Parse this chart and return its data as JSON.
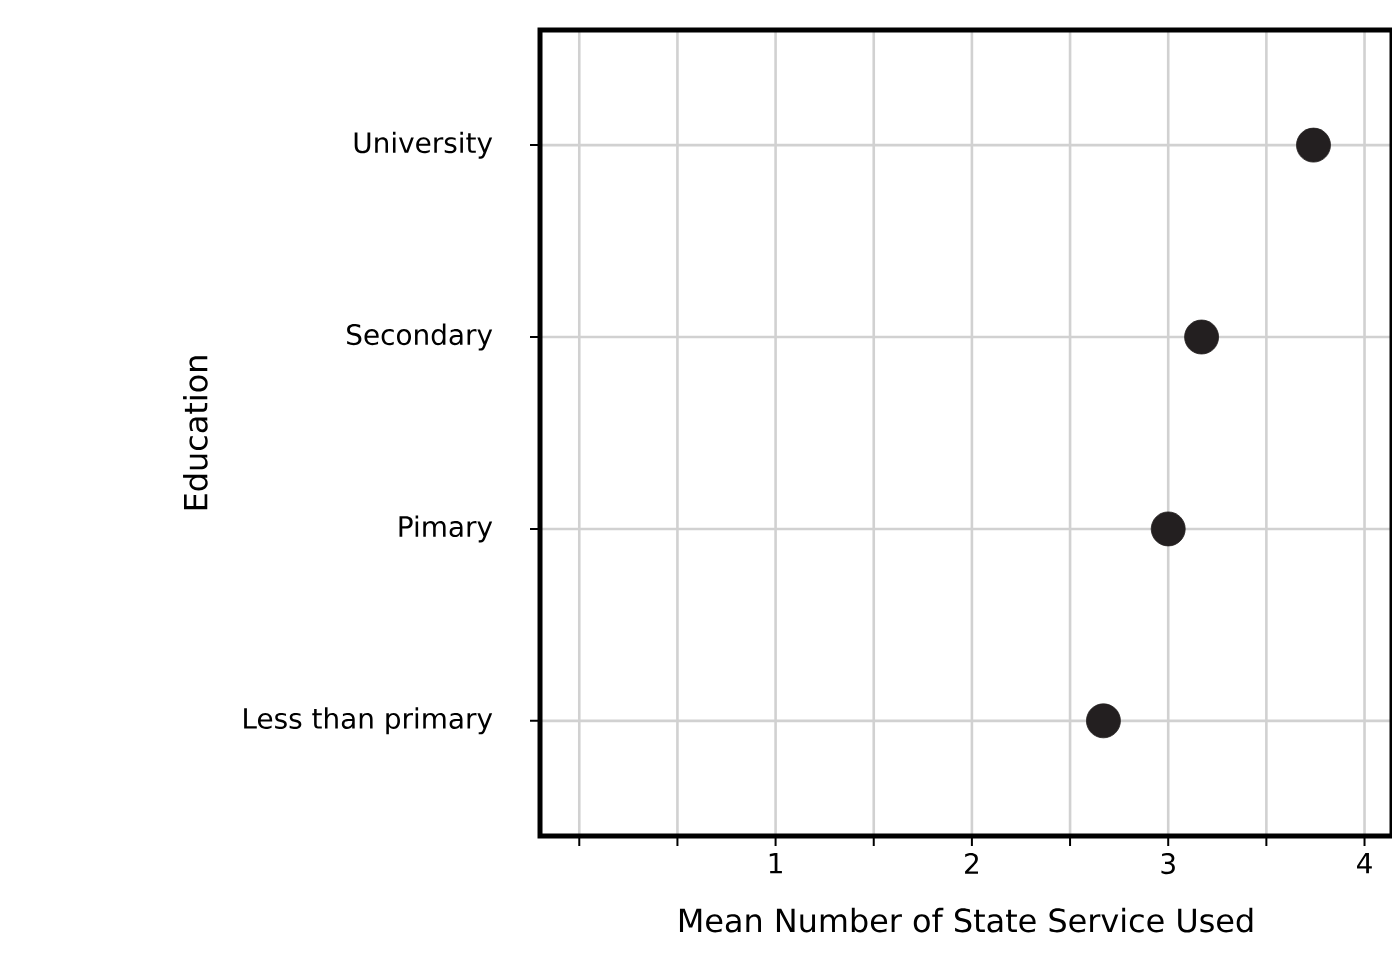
{
  "chart_data": {
    "type": "scatter",
    "orientation": "horizontal",
    "categories": [
      "University",
      "Secondary",
      "Pimary",
      "Less than primary"
    ],
    "values": [
      3.74,
      3.17,
      3.0,
      2.67
    ],
    "color": "#231f20",
    "xlabel": "Mean Number of State Service Used",
    "ylabel": "Education",
    "xlim": [
      -0.2,
      4.14
    ],
    "xticks": [
      {
        "value": 0,
        "label": null
      },
      {
        "value": 0.5,
        "label": null
      },
      1,
      {
        "value": 1.5,
        "label": null
      },
      2,
      {
        "value": 2.5,
        "label": null
      },
      3,
      {
        "value": 3.5,
        "label": null
      },
      4
    ],
    "grid": true
  }
}
